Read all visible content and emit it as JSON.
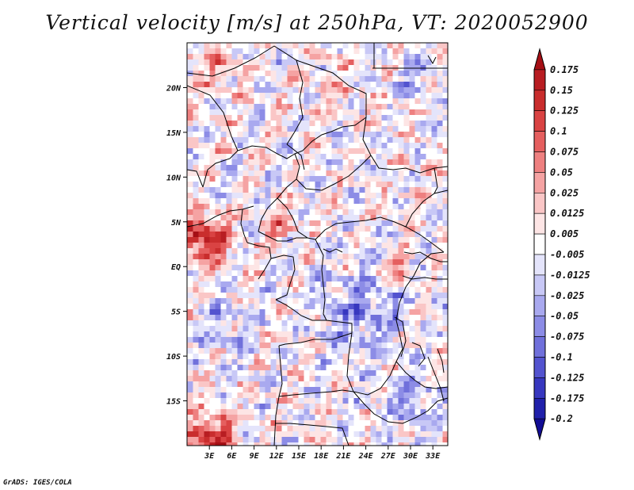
{
  "title": "Vertical velocity [m/s] at 250hPa, VT: 2020052900",
  "footer": "GrADS: IGES/COLA",
  "chart_data": {
    "type": "heatmap",
    "variable": "Vertical velocity",
    "units": "m/s",
    "level": "250hPa",
    "valid_time": "2020052900",
    "lon_range": [
      0,
      35
    ],
    "lat_range": [
      -20,
      25
    ],
    "x_tick_labels": [
      "3E",
      "6E",
      "9E",
      "12E",
      "15E",
      "18E",
      "21E",
      "24E",
      "27E",
      "30E",
      "33E"
    ],
    "x_tick_values": [
      3,
      6,
      9,
      12,
      15,
      18,
      21,
      24,
      27,
      30,
      33
    ],
    "y_tick_labels": [
      "20N",
      "15N",
      "10N",
      "5N",
      "EQ",
      "5S",
      "10S",
      "15S"
    ],
    "y_tick_values": [
      20,
      15,
      10,
      5,
      0,
      -5,
      -10,
      -15
    ],
    "colorbar": {
      "labels": [
        "0.175",
        "0.15",
        "0.125",
        "0.1",
        "0.075",
        "0.05",
        "0.025",
        "0.0125",
        "0.005",
        "-0.005",
        "-0.0125",
        "-0.025",
        "-0.05",
        "-0.075",
        "-0.1",
        "-0.125",
        "-0.175",
        "-0.2"
      ],
      "colors": [
        "#a50f15",
        "#b81d22",
        "#c92d2d",
        "#d94343",
        "#e55f5f",
        "#ee8080",
        "#f5a3a3",
        "#fac6c6",
        "#fde5e5",
        "#ffffff",
        "#e4e4fb",
        "#c8c8f6",
        "#a9a9ef",
        "#8c8ce6",
        "#7070db",
        "#5353cf",
        "#3737bf",
        "#2020aa",
        "#120c94"
      ]
    }
  }
}
